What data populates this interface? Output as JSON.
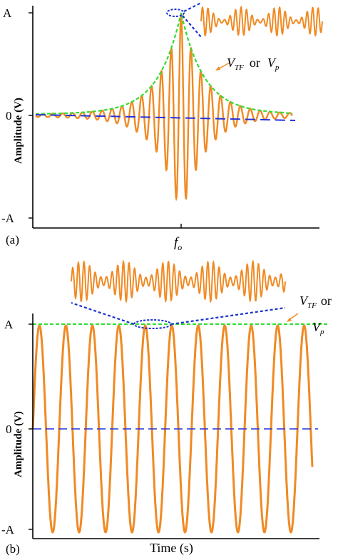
{
  "colors": {
    "signal": "#F08A24",
    "envelope": "#33DD33",
    "zero_line": "#2233DD",
    "zoom_lines": "#1a33cc",
    "axis": "#000000"
  },
  "chart_data": [
    {
      "id": "a",
      "type": "line",
      "panel_label": "(a)",
      "ylabel": "Amplitude (V)",
      "xlabel": "",
      "x_tick_label": "f",
      "x_tick_label_sub": "o",
      "y_ticks": [
        "A",
        "0",
        "-A"
      ],
      "ylim": [
        -1,
        1
      ],
      "x_span": [
        0,
        1
      ],
      "center_frequency_x": 0.5,
      "annotation": {
        "v": "V",
        "v_sub": "TF",
        "or": "or",
        "vp": "V",
        "vp_sub": "p"
      },
      "series": [
        {
          "role": "signal",
          "description_values": {
            "peak_amplitude": 1.0,
            "cycles": 26,
            "decay_width": 0.16
          }
        },
        {
          "role": "envelope",
          "values_at_x": {
            "0": 0.03,
            "0.25": 0.13,
            "0.4": 0.5,
            "0.5": 1.0,
            "0.6": 0.5,
            "0.75": 0.13,
            "0.9": 0.0
          }
        },
        {
          "role": "zero_line",
          "value": 0
        }
      ]
    },
    {
      "id": "b",
      "type": "line",
      "panel_label": "(b)",
      "ylabel": "Amplitude (V)",
      "xlabel": "Time (s)",
      "y_ticks": [
        "A",
        "0",
        "-A"
      ],
      "ylim": [
        -1,
        1
      ],
      "cycles": 11,
      "amplitude": 1.0,
      "annotation": {
        "v": "V",
        "v_sub": "TF",
        "or": "or",
        "vp": "V",
        "vp_sub": "p"
      },
      "series": [
        {
          "role": "signal",
          "amplitude": 1.0
        },
        {
          "role": "envelope",
          "value": 1.0
        },
        {
          "role": "zero_line",
          "value": 0
        }
      ]
    }
  ]
}
